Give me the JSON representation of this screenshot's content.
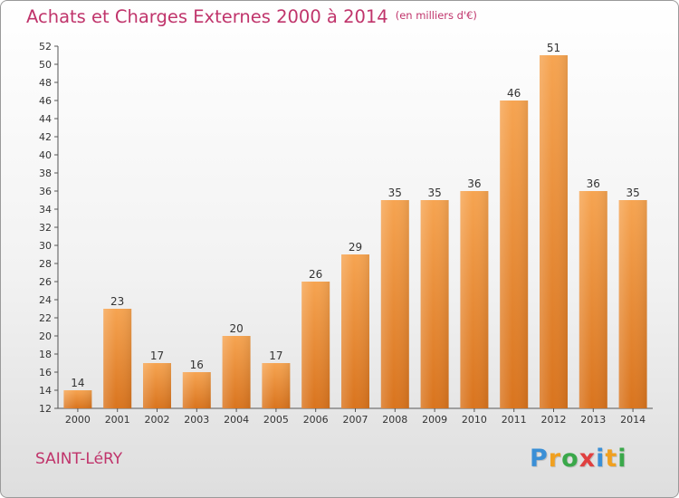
{
  "header": {
    "title": "Achats et Charges Externes 2000 à 2014",
    "unit": "(en milliers d'€)"
  },
  "footer": {
    "commune": "SAINT-LéRY",
    "brand_letters": [
      {
        "ch": "P",
        "color": "#3a8fd6"
      },
      {
        "ch": "r",
        "color": "#f0a020"
      },
      {
        "ch": "o",
        "color": "#3aa84a"
      },
      {
        "ch": "x",
        "color": "#e04040"
      },
      {
        "ch": "i",
        "color": "#3a8fd6"
      },
      {
        "ch": "t",
        "color": "#f0a020"
      },
      {
        "ch": "i",
        "color": "#3aa84a"
      }
    ]
  },
  "chart_data": {
    "type": "bar",
    "title": "Achats et Charges Externes 2000 à 2014",
    "subtitle": "(en milliers d'€)",
    "categories": [
      "2000",
      "2001",
      "2002",
      "2003",
      "2004",
      "2005",
      "2006",
      "2007",
      "2008",
      "2009",
      "2010",
      "2011",
      "2012",
      "2013",
      "2014"
    ],
    "values": [
      14,
      23,
      17,
      16,
      20,
      17,
      26,
      29,
      35,
      35,
      36,
      46,
      51,
      36,
      35
    ],
    "ylim": [
      12,
      52
    ],
    "ytick_step": 2,
    "grid": false,
    "bar_color_top": "#f6a451",
    "bar_color_bottom": "#d9741e"
  }
}
